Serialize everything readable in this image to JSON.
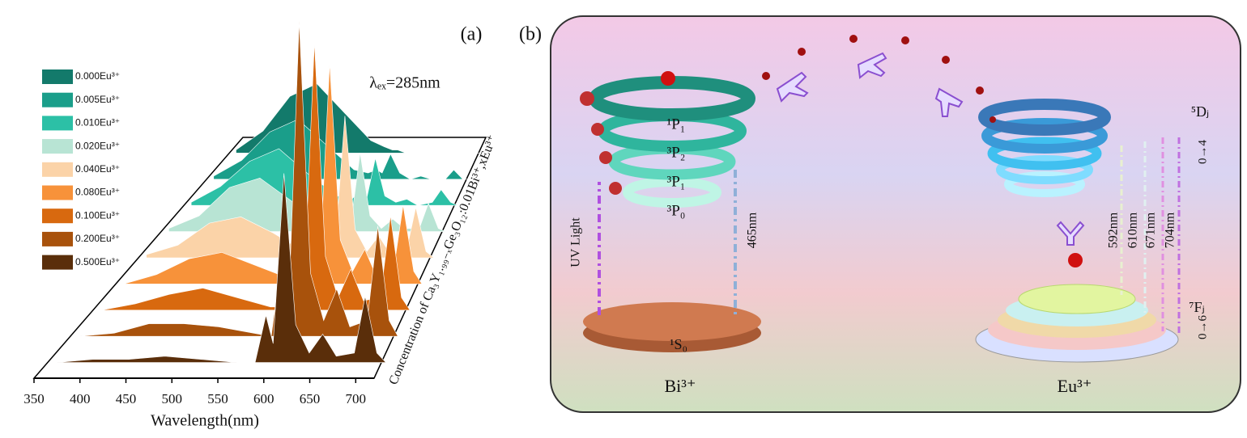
{
  "panel_labels": [
    "(a)",
    "(b)"
  ],
  "chart_data": {
    "type": "area",
    "annotation": "λₑₓ=285nm",
    "xlabel": "Wavelength(nm)",
    "ylabel": "Concentration of Ca₃Y₁.₉₉₋ₓGe₃O₁₂:0.01Bi³⁺,xEu³⁺",
    "xlim": [
      350,
      720
    ],
    "xticks": [
      350,
      400,
      450,
      500,
      550,
      600,
      650,
      700
    ],
    "x": [
      360,
      400,
      440,
      480,
      520,
      560,
      580,
      592,
      600,
      612,
      625,
      640,
      655,
      670,
      690,
      702,
      715,
      725
    ],
    "series": [
      {
        "name": "0.000Eu³⁺",
        "color": "#137a6b",
        "values": [
          1,
          7,
          18,
          22,
          13,
          4,
          2,
          1,
          1,
          0,
          0,
          0,
          0,
          0,
          0,
          0,
          0,
          0
        ]
      },
      {
        "name": "0.005Eu³⁺",
        "color": "#1a9e8a",
        "values": [
          1,
          6,
          15,
          19,
          11,
          3,
          2,
          3,
          2,
          8,
          2,
          0,
          1,
          0,
          0,
          3,
          0,
          0
        ]
      },
      {
        "name": "0.010Eu³⁺",
        "color": "#2cc0a6",
        "values": [
          1,
          6,
          14,
          18,
          10,
          3,
          2,
          5,
          2,
          15,
          3,
          1,
          2,
          0,
          1,
          5,
          1,
          0
        ]
      },
      {
        "name": "0.020Eu³⁺",
        "color": "#b8e4d4",
        "values": [
          1,
          5,
          14,
          17,
          10,
          3,
          2,
          7,
          3,
          25,
          5,
          1,
          4,
          1,
          1,
          9,
          1,
          0
        ]
      },
      {
        "name": "0.040Eu³⁺",
        "color": "#fbd3a8",
        "values": [
          1,
          4,
          11,
          13,
          8,
          2,
          1,
          12,
          5,
          45,
          9,
          2,
          7,
          1,
          2,
          16,
          2,
          0
        ]
      },
      {
        "name": "0.080Eu³⁺",
        "color": "#f7923a",
        "values": [
          0,
          3,
          8,
          10,
          6,
          2,
          1,
          18,
          7,
          70,
          14,
          4,
          11,
          2,
          4,
          25,
          4,
          0
        ]
      },
      {
        "name": "0.100Eu³⁺",
        "color": "#d8690f",
        "values": [
          0,
          2,
          5,
          7,
          4,
          1,
          1,
          22,
          9,
          85,
          17,
          4,
          13,
          3,
          4,
          30,
          4,
          0
        ]
      },
      {
        "name": "0.200Eu³⁺",
        "color": "#a8520c",
        "values": [
          0,
          1,
          4,
          4,
          3,
          1,
          0,
          25,
          10,
          100,
          20,
          5,
          15,
          3,
          5,
          35,
          5,
          0
        ]
      },
      {
        "name": "0.500Eu³⁺",
        "color": "#5a2e0a",
        "values": [
          0,
          1,
          1,
          2,
          1,
          0,
          0,
          15,
          6,
          60,
          12,
          3,
          9,
          2,
          3,
          21,
          3,
          0
        ]
      }
    ]
  },
  "diagram": {
    "bi_levels": [
      "¹P₁",
      "³P₂",
      "³P₁",
      "³P₀"
    ],
    "bi_ground": "¹S₀",
    "uv": "UV Light",
    "bi_emission": "465nm",
    "bi_ion": "Bi³⁺",
    "eu_ion": "Eu³⁺",
    "eu_upper": "⁵Dⱼ",
    "eu_upper_range": "0→4",
    "eu_lower": "⁷Fⱼ",
    "eu_lower_range": "0→6",
    "eu_emissions": [
      "592nm",
      "610nm",
      "671nm",
      "704nm"
    ]
  }
}
